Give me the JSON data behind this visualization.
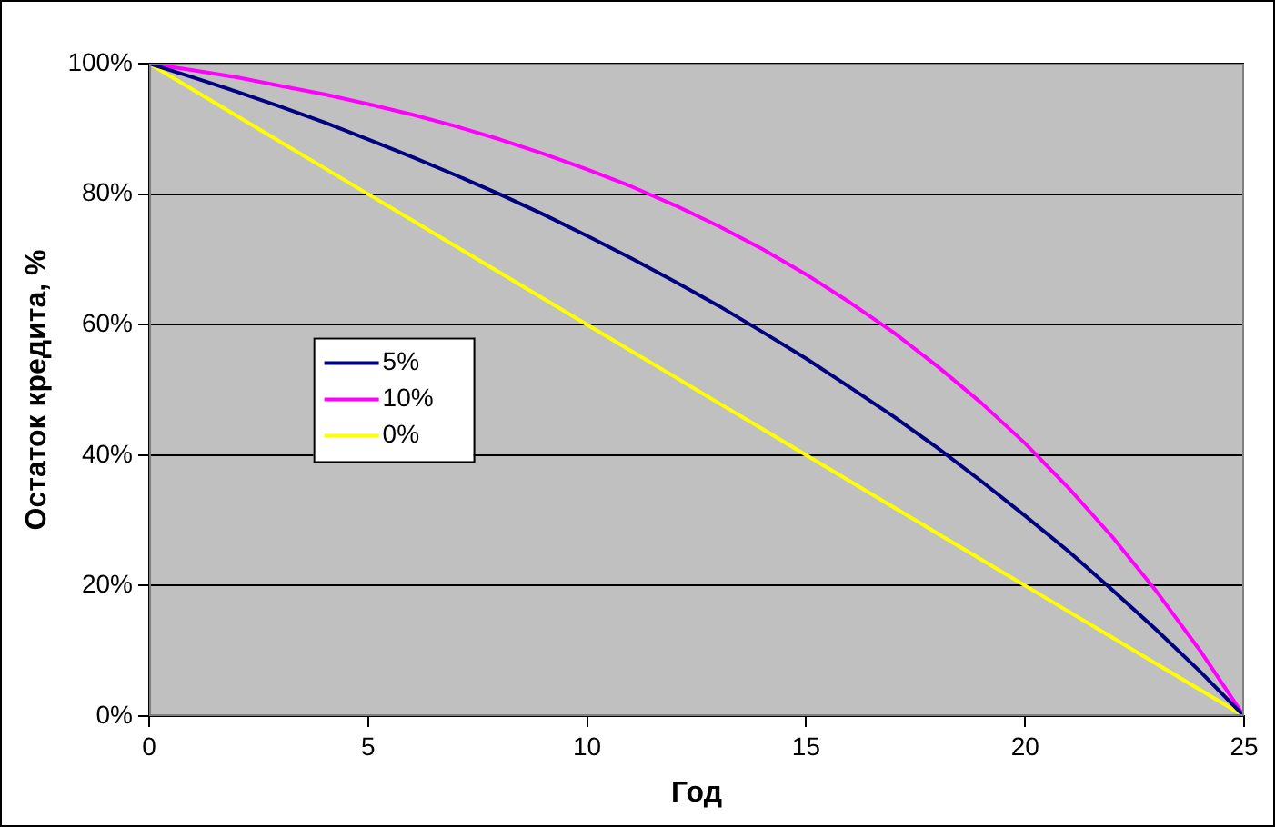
{
  "chart_data": {
    "type": "line",
    "xlabel": "Год",
    "ylabel": "Остаток кредита, %",
    "x": [
      0,
      1,
      2,
      3,
      4,
      5,
      6,
      7,
      8,
      9,
      10,
      11,
      12,
      13,
      14,
      15,
      16,
      17,
      18,
      19,
      20,
      21,
      22,
      23,
      24,
      25
    ],
    "series": [
      {
        "name": "5%",
        "color": "#000080",
        "values": [
          100,
          97.9,
          95.7,
          93.4,
          91.0,
          88.4,
          85.7,
          82.9,
          80.0,
          76.9,
          73.6,
          70.2,
          66.6,
          62.9,
          58.9,
          54.8,
          50.4,
          45.9,
          41.1,
          36.0,
          30.7,
          25.2,
          19.3,
          13.2,
          6.8,
          0
        ]
      },
      {
        "name": "10%",
        "color": "#ff00ff",
        "values": [
          100,
          99.0,
          97.9,
          96.6,
          95.3,
          93.8,
          92.2,
          90.4,
          88.4,
          86.2,
          83.8,
          81.2,
          78.3,
          75.1,
          71.6,
          67.7,
          63.4,
          58.8,
          53.6,
          48.0,
          41.8,
          34.9,
          27.4,
          19.1,
          10.0,
          0
        ]
      },
      {
        "name": "0%",
        "color": "#ffff00",
        "values": [
          100,
          96,
          92,
          88,
          84,
          80,
          76,
          72,
          68,
          64,
          60,
          56,
          52,
          48,
          44,
          40,
          36,
          32,
          28,
          24,
          20,
          16,
          12,
          8,
          4,
          0
        ]
      }
    ],
    "xlim": [
      0,
      25
    ],
    "xticks": [
      0,
      5,
      10,
      15,
      20,
      25
    ],
    "ylim": [
      0,
      100
    ],
    "yticks": [
      {
        "value": 0,
        "label": "0%"
      },
      {
        "value": 20,
        "label": "20%"
      },
      {
        "value": 40,
        "label": "40%"
      },
      {
        "value": 60,
        "label": "60%"
      },
      {
        "value": 80,
        "label": "80%"
      },
      {
        "value": 100,
        "label": "100%"
      }
    ],
    "grid": "y",
    "legend": "center left",
    "marker": "none",
    "line_style": "solid"
  }
}
